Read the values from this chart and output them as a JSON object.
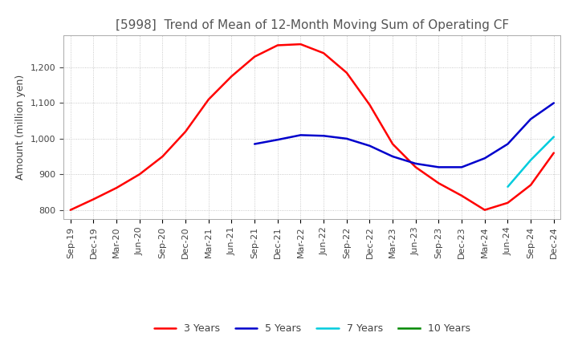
{
  "title": "[5998]  Trend of Mean of 12-Month Moving Sum of Operating CF",
  "ylabel": "Amount (million yen)",
  "legend_labels": [
    "3 Years",
    "5 Years",
    "7 Years",
    "10 Years"
  ],
  "legend_colors": [
    "#ff0000",
    "#0000cc",
    "#00ccdd",
    "#008800"
  ],
  "x_labels": [
    "Sep-19",
    "Dec-19",
    "Mar-20",
    "Jun-20",
    "Sep-20",
    "Dec-20",
    "Mar-21",
    "Jun-21",
    "Sep-21",
    "Dec-21",
    "Mar-22",
    "Jun-22",
    "Sep-22",
    "Dec-22",
    "Mar-23",
    "Jun-23",
    "Sep-23",
    "Dec-23",
    "Mar-24",
    "Jun-24",
    "Sep-24",
    "Dec-24"
  ],
  "ylim": [
    775,
    1290
  ],
  "yticks": [
    800,
    900,
    1000,
    1100,
    1200
  ],
  "series_3y": [
    800,
    830,
    862,
    900,
    950,
    1020,
    1110,
    1175,
    1230,
    1262,
    1265,
    1240,
    1185,
    1095,
    985,
    920,
    875,
    840,
    800,
    820,
    870,
    960
  ],
  "series_5y": [
    null,
    null,
    null,
    null,
    null,
    null,
    null,
    null,
    985,
    997,
    1010,
    1008,
    1000,
    980,
    950,
    930,
    920,
    920,
    945,
    985,
    1055,
    1100
  ],
  "series_7y": [
    null,
    null,
    null,
    null,
    null,
    null,
    null,
    null,
    null,
    null,
    null,
    null,
    null,
    null,
    null,
    null,
    null,
    null,
    null,
    865,
    940,
    1005
  ],
  "series_10y": [
    null,
    null,
    null,
    null,
    null,
    null,
    null,
    null,
    null,
    null,
    null,
    null,
    null,
    null,
    null,
    null,
    null,
    null,
    null,
    null,
    null,
    null
  ],
  "background_color": "#ffffff",
  "grid_color": "#bbbbbb",
  "title_color": "#555555",
  "title_fontsize": 11,
  "ylabel_fontsize": 9,
  "tick_fontsize": 8
}
